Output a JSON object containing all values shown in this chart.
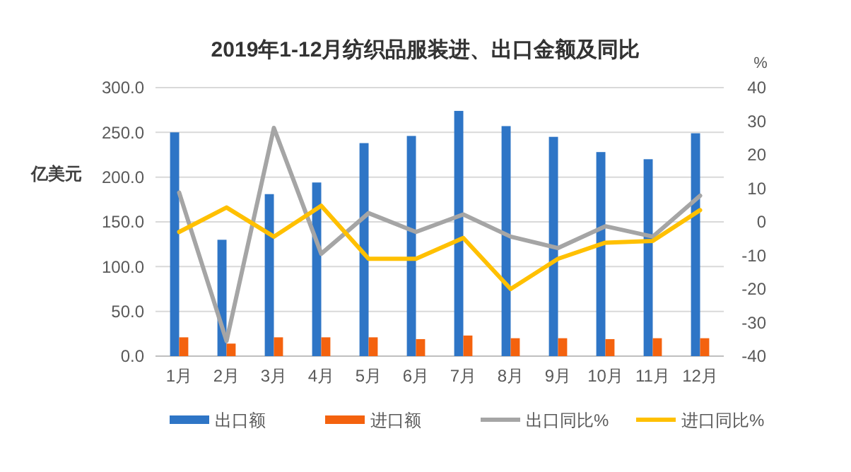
{
  "chart_data": {
    "type": "bar",
    "title": "2019年1-12月纺织品服装进、出口金额及同比",
    "ylabel": "亿美元",
    "y2label": "%",
    "categories": [
      "1月",
      "2月",
      "3月",
      "4月",
      "5月",
      "6月",
      "7月",
      "8月",
      "9月",
      "10月",
      "11月",
      "12月"
    ],
    "series": [
      {
        "name": "出口额",
        "color": "#2e75c6",
        "values": [
          250,
          130,
          181,
          194,
          238,
          246,
          274,
          257,
          245,
          228,
          220,
          249
        ]
      },
      {
        "name": "进口额",
        "color": "#f4620e",
        "values": [
          21,
          14,
          21,
          21,
          21,
          19,
          23,
          20,
          20,
          19,
          20,
          20
        ]
      },
      {
        "name": "出口同比%",
        "type": "line",
        "axis": "y2",
        "color": "#a5a5a5",
        "values": [
          8.7,
          -35.5,
          28,
          -9.5,
          2.6,
          -3,
          2.2,
          -4.4,
          -7.8,
          -1.3,
          -4.4,
          7.8
        ]
      },
      {
        "name": "进口同比%",
        "type": "line",
        "axis": "y2",
        "color": "#ffc000",
        "values": [
          -3,
          4.3,
          -4.4,
          4.8,
          -11,
          -11,
          -4.8,
          -20,
          -11,
          -6.2,
          -5.7,
          3.5
        ]
      }
    ],
    "ylim": [
      0,
      300
    ],
    "yticks": [
      {
        "value": 0,
        "label": "0.0"
      },
      {
        "value": 50,
        "label": "50.0"
      },
      {
        "value": 100,
        "label": "100.0"
      },
      {
        "value": 150,
        "label": "150.0"
      },
      {
        "value": 200,
        "label": "200.0"
      },
      {
        "value": 250,
        "label": "250.0"
      },
      {
        "value": 300,
        "label": "300.0"
      }
    ],
    "y2lim": [
      -40,
      40
    ],
    "y2ticks": [
      -40,
      -30,
      -20,
      -10,
      0,
      10,
      20,
      30,
      40
    ],
    "grid": "y",
    "legend": "bottom",
    "marker": "none",
    "line_style": "solid"
  }
}
